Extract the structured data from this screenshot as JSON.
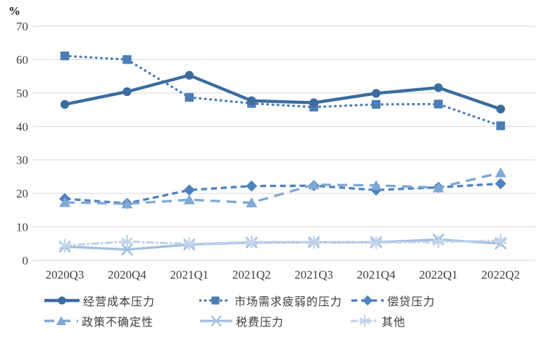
{
  "chart_data": {
    "type": "line",
    "unit": "%",
    "title": "",
    "xlabel": "",
    "ylabel": "%",
    "ylim": [
      0,
      70
    ],
    "yticks": [
      0,
      10,
      20,
      30,
      40,
      50,
      60,
      70
    ],
    "grid": "horizontal",
    "grid_color": "#D6D6D6",
    "axis_text_color": "#404040",
    "legend_position": "bottom",
    "categories": [
      "2020Q3",
      "2020Q4",
      "2021Q1",
      "2021Q2",
      "2021Q3",
      "2021Q4",
      "2022Q1",
      "2022Q2"
    ],
    "series": [
      {
        "name": "经营成本压力",
        "values": [
          46.6,
          50.4,
          55.3,
          47.7,
          47.1,
          49.9,
          51.6,
          45.2
        ],
        "color": "#3B6CA0",
        "marker": "circle",
        "line_style": "solid"
      },
      {
        "name": "市场需求疲弱的压力",
        "values": [
          61.1,
          60.0,
          48.7,
          46.9,
          45.8,
          46.6,
          46.7,
          40.2
        ],
        "color": "#4B7DB6",
        "marker": "square",
        "line_style": "dotted"
      },
      {
        "name": "偿贷压力",
        "values": [
          18.4,
          17.0,
          21.0,
          22.2,
          22.3,
          21.0,
          21.8,
          22.9
        ],
        "color": "#4F83BF",
        "marker": "diamond",
        "line_style": "dashed"
      },
      {
        "name": "政策不确定性",
        "values": [
          17.3,
          16.9,
          18.1,
          17.2,
          22.6,
          22.4,
          21.7,
          26.2
        ],
        "color": "#7FA8D6",
        "marker": "triangle",
        "line_style": "long-dash"
      },
      {
        "name": "税费压力",
        "values": [
          4.1,
          3.2,
          4.7,
          5.3,
          5.4,
          5.4,
          6.2,
          5.0
        ],
        "color": "#A2BFE0",
        "marker": "x",
        "line_style": "solid"
      },
      {
        "name": "其他",
        "values": [
          4.4,
          5.6,
          4.9,
          5.5,
          5.4,
          5.3,
          5.5,
          5.9
        ],
        "color": "#C3D4EA",
        "marker": "asterisk",
        "line_style": "dash-dot"
      }
    ]
  }
}
